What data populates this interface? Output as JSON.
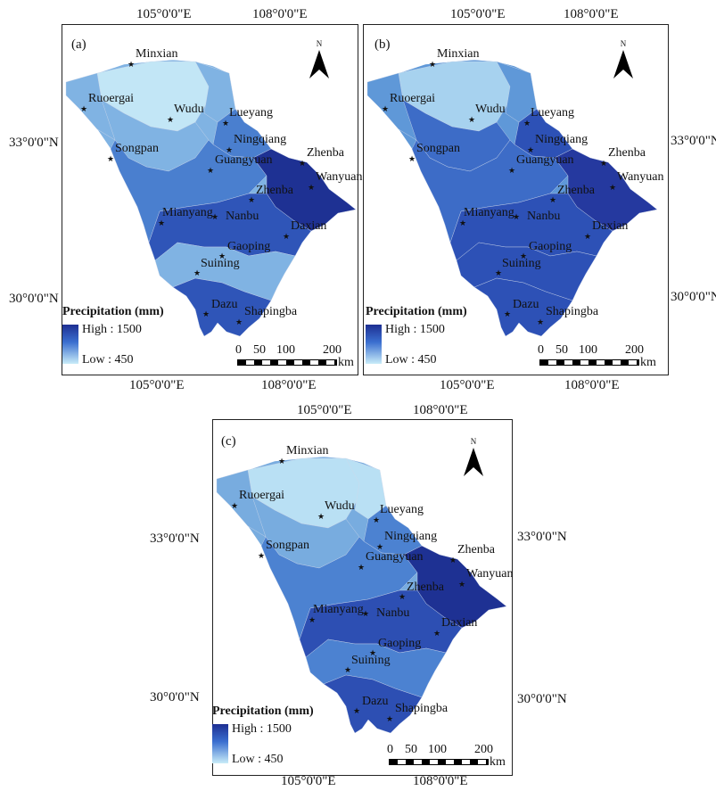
{
  "coords": {
    "lon_105": "105°0'0\"E",
    "lon_108": "108°0'0\"E",
    "lat_33": "33°0'0\"N",
    "lat_30": "30°0'0\"N"
  },
  "north_label": "N",
  "panels": [
    {
      "label": "(a)"
    },
    {
      "label": "(b)"
    },
    {
      "label": "(c)"
    }
  ],
  "cities": [
    "Minxian",
    "Ruoergai",
    "Wudu",
    "Lueyang",
    "Ningqiang",
    "Songpan",
    "Zhenba",
    "Guangyuan",
    "Wanyuan",
    "Zhenba",
    "Mianyang",
    "Nanbu",
    "Daxian",
    "Gaoping",
    "Suining",
    "Dazu",
    "Shapingba"
  ],
  "legend": {
    "title": "Precipitation (mm)",
    "high": "High : 1500",
    "low": "Low : 450",
    "colors": {
      "high": "#1d2f92",
      "mid": "#3b6fd0",
      "low": "#c9ecf8"
    }
  },
  "scalebar": {
    "ticks": [
      "0",
      "50",
      "100",
      "200"
    ],
    "unit": "km"
  }
}
